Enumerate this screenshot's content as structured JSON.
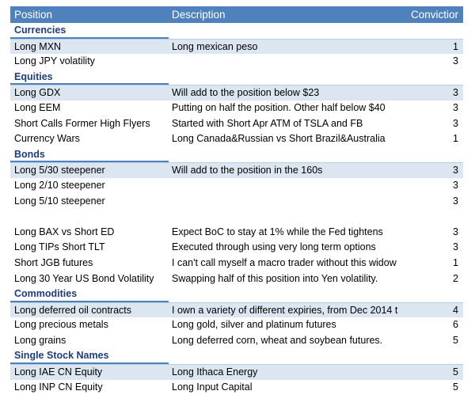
{
  "header": {
    "position": "Position",
    "description": "Description",
    "conviction": "Conviction"
  },
  "rows": [
    {
      "type": "section",
      "label": "Currencies"
    },
    {
      "type": "data",
      "stripe": true,
      "position": "Long MXN",
      "description": "Long mexican peso",
      "conviction": "1"
    },
    {
      "type": "data",
      "stripe": false,
      "position": "Long JPY volatility",
      "description": "",
      "conviction": "3"
    },
    {
      "type": "section",
      "label": "Equities"
    },
    {
      "type": "data",
      "stripe": true,
      "position": "Long GDX",
      "description": "Will add to the position below $23",
      "conviction": "3"
    },
    {
      "type": "data",
      "stripe": false,
      "position": "Long EEM",
      "description": "Putting on half the position.  Other half below $40",
      "conviction": "3"
    },
    {
      "type": "data",
      "stripe": false,
      "position": "Short Calls Former High Flyers",
      "description": "Started with Short Apr ATM of TSLA and FB",
      "conviction": "3"
    },
    {
      "type": "data",
      "stripe": false,
      "position": "Currency Wars",
      "description": "Long Canada&Russian vs Short Brazil&Australia",
      "conviction": "1"
    },
    {
      "type": "section",
      "label": "Bonds"
    },
    {
      "type": "data",
      "stripe": true,
      "position": "Long 5/30 steepener",
      "description": "Will add to the position in the 160s",
      "conviction": "3"
    },
    {
      "type": "data",
      "stripe": false,
      "position": "Long 2/10 steepener",
      "description": "",
      "conviction": "3"
    },
    {
      "type": "data",
      "stripe": false,
      "position": "Long 5/10 steepener",
      "description": "",
      "conviction": "3"
    },
    {
      "type": "blank"
    },
    {
      "type": "data",
      "stripe": false,
      "position": "Long BAX vs Short ED",
      "description": "Expect BoC to stay at 1% while the Fed tightens",
      "conviction": "3"
    },
    {
      "type": "data",
      "stripe": false,
      "position": "Long TIPs Short TLT",
      "description": "Executed through using very long term options",
      "conviction": "3"
    },
    {
      "type": "data",
      "stripe": false,
      "position": "Short JGB futures",
      "description": "I can't call myself a macro trader without this widow",
      "conviction": "1"
    },
    {
      "type": "data",
      "stripe": false,
      "position": "Long 30 Year US Bond Volatility",
      "description": "Swapping half of this position into Yen volatility.",
      "conviction": "2"
    },
    {
      "type": "section",
      "label": "Commodities"
    },
    {
      "type": "data",
      "stripe": true,
      "position": "Long deferred oil contracts",
      "description": "I own a variety of different expiries, from Dec 2014 t",
      "conviction": "4"
    },
    {
      "type": "data",
      "stripe": false,
      "position": "Long precious metals",
      "description": "Long gold, silver and platinum futures",
      "conviction": "6"
    },
    {
      "type": "data",
      "stripe": false,
      "position": "Long grains",
      "description": "Long deferred corn, wheat and soybean futures.",
      "conviction": "5"
    },
    {
      "type": "section",
      "label": "Single Stock Names"
    },
    {
      "type": "data",
      "stripe": true,
      "position": "Long IAE CN Equity",
      "description": "Long Ithaca Energy",
      "conviction": "5"
    },
    {
      "type": "data",
      "stripe": false,
      "position": "Long INP CN Equity",
      "description": "Long Input Capital",
      "conviction": "5"
    }
  ],
  "colors": {
    "header_bg": "#4f81bd",
    "header_text": "#ffffff",
    "section_text": "#1f3d7a",
    "stripe_bg": "#dce6f1"
  }
}
